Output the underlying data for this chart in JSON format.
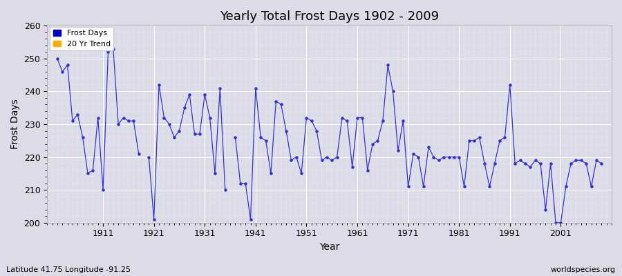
{
  "title": "Yearly Total Frost Days 1902 - 2009",
  "xlabel": "Year",
  "ylabel": "Frost Days",
  "lat_lon_label": "Latitude 41.75 Longitude -91.25",
  "watermark": "worldspecies.org",
  "legend_entries": [
    "Frost Days",
    "20 Yr Trend"
  ],
  "legend_colors": [
    "#0000cc",
    "#ffaa00"
  ],
  "line_color": "#3333cc",
  "background_color": "#dcdce8",
  "ylim": [
    200,
    260
  ],
  "yticks": [
    200,
    210,
    220,
    230,
    240,
    250,
    260
  ],
  "xticks": [
    1911,
    1921,
    1931,
    1941,
    1951,
    1961,
    1971,
    1981,
    1991,
    2001
  ],
  "years": [
    1902,
    1903,
    1904,
    1905,
    1906,
    1907,
    1908,
    1909,
    1910,
    1912,
    1913,
    1914,
    1915,
    1917,
    1918,
    1921,
    1922,
    1923,
    1924,
    1925,
    1926,
    1928,
    1929,
    1930,
    1932,
    1934,
    1937,
    1940,
    1941,
    1942,
    1943,
    1944,
    1945,
    1946,
    1947,
    1948,
    1949,
    1951,
    1952,
    1953,
    1954,
    1955,
    1956,
    1957,
    1958,
    1959,
    1960,
    1962,
    1963,
    1964,
    1965,
    1966,
    1967,
    1968,
    1972,
    1973,
    1976,
    1977,
    1978,
    1981,
    1982,
    1984,
    1985,
    1986,
    1987,
    1988,
    1991,
    1992,
    1993,
    1994,
    1995,
    1996,
    1997,
    2001,
    2002,
    2003,
    2004,
    2005,
    2006,
    2007,
    2008,
    2009
  ],
  "frost_days": [
    250,
    246,
    248,
    231,
    233,
    226,
    215,
    216,
    232,
    252,
    253,
    230,
    232,
    231,
    221,
    201,
    242,
    232,
    230,
    226,
    228,
    239,
    227,
    227,
    232,
    241,
    226,
    201,
    241,
    226,
    225,
    215,
    237,
    236,
    228,
    219,
    220,
    232,
    231,
    228,
    219,
    220,
    219,
    220,
    232,
    231,
    217,
    232,
    216,
    224,
    225,
    231,
    248,
    240,
    221,
    220,
    220,
    219,
    220,
    220,
    211,
    225,
    226,
    218,
    211,
    218,
    242,
    218,
    219,
    218,
    217,
    219,
    218,
    200,
    211,
    218,
    219,
    219,
    218,
    211,
    219,
    218
  ],
  "isolated_years": [
    1911,
    1916,
    1920,
    1927,
    1931,
    1933,
    1935,
    1938,
    1939,
    1950,
    1961,
    1969,
    1970,
    1971,
    1974,
    1975,
    1979,
    1980,
    1983,
    1989,
    1990,
    1998,
    1999,
    2000
  ],
  "isolated_values": [
    210,
    231,
    220,
    235,
    239,
    215,
    210,
    212,
    212,
    215,
    232,
    222,
    231,
    211,
    211,
    223,
    220,
    220,
    225,
    225,
    226,
    204,
    218,
    200
  ],
  "xlim_left": 1900,
  "xlim_right": 2011
}
